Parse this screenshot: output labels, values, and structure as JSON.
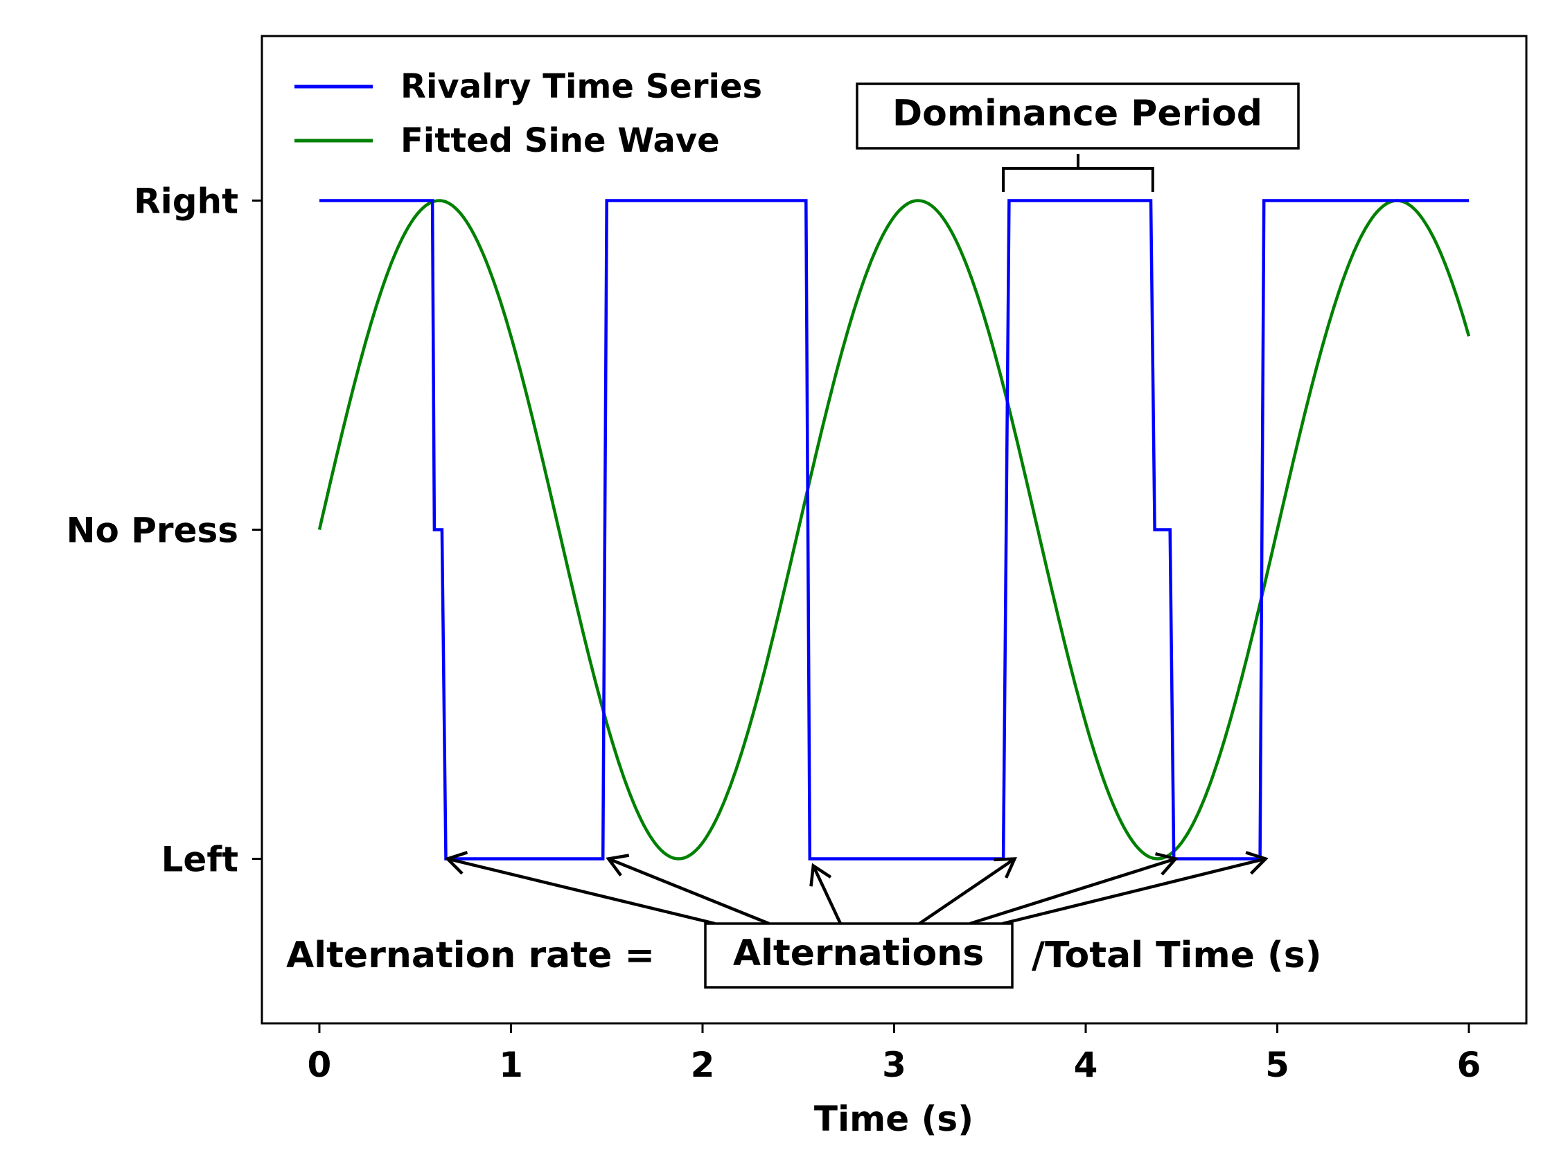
{
  "chart_data": {
    "type": "line",
    "xlabel": "Time (s)",
    "ylabel": "",
    "xlim": [
      -0.3,
      6.3
    ],
    "ylim": [
      -0.5,
      2.5
    ],
    "x_ticks": [
      0,
      1,
      2,
      3,
      4,
      5,
      6
    ],
    "x_tick_labels": [
      "0",
      "1",
      "2",
      "3",
      "4",
      "5",
      "6"
    ],
    "y_ticks": [
      0,
      1,
      2
    ],
    "y_tick_labels": [
      "Left",
      "No Press",
      "Right"
    ],
    "grid": false,
    "legend_position": "top-left",
    "series": [
      {
        "name": "Rivalry Time Series",
        "color": "#0000ff",
        "x": [
          0,
          0.59,
          0.6,
          0.64,
          0.66,
          1.48,
          1.5,
          2.54,
          2.56,
          3.57,
          3.6,
          4.34,
          4.36,
          4.44,
          4.46,
          4.91,
          4.93,
          6.0
        ],
        "y": [
          2,
          2,
          1,
          1,
          0,
          0,
          2,
          2,
          0,
          0,
          2,
          2,
          1,
          1,
          0,
          0,
          2,
          2
        ]
      },
      {
        "name": "Fitted Sine Wave",
        "color": "#008000",
        "function": "sine",
        "offset": 1,
        "amplitude": 1,
        "period": 2.5,
        "phase_peak_x": 0.625,
        "x_range": [
          0,
          6
        ]
      }
    ],
    "annotations": {
      "dominance_label": "Dominance Period",
      "dominance_bracket_x": [
        3.57,
        4.35
      ],
      "alternations_label": "Alternations",
      "formula_prefix": "Alternation rate = ",
      "formula_suffix": "/Total Time (s)",
      "alternation_points": [
        {
          "x": 0.64,
          "y": 0
        },
        {
          "x": 1.48,
          "y": 0
        },
        {
          "x": 2.56,
          "y": 0
        },
        {
          "x": 3.6,
          "y": 0
        },
        {
          "x": 4.44,
          "y": 0
        },
        {
          "x": 4.91,
          "y": 0
        }
      ]
    }
  },
  "colors": {
    "rivalry": "#0000ff",
    "sine": "#008000",
    "annotation": "#000000"
  }
}
